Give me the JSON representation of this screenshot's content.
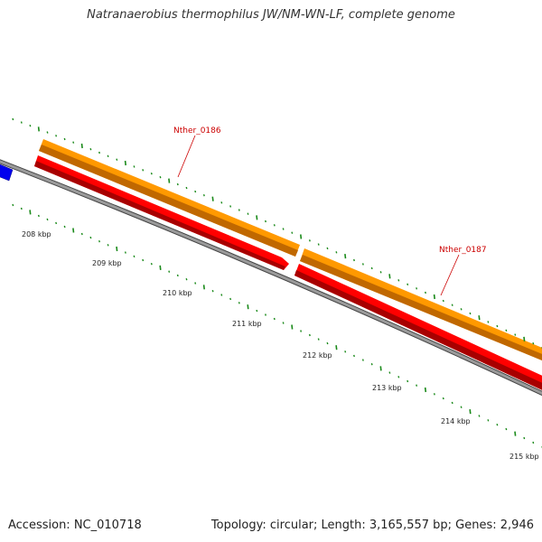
{
  "title": "Natranaerobius thermophilus JW/NM-WN-LF, complete genome",
  "accession": "Accession: NC_010718",
  "summary": "Topology: circular; Length: 3,165,557 bp; Genes: 2,946",
  "ruler": {
    "tick_labels": [
      "208 kbp",
      "209 kbp",
      "210 kbp",
      "211 kbp",
      "212 kbp",
      "213 kbp",
      "214 kbp",
      "215 kbp"
    ]
  },
  "genes": [
    {
      "label": "Nther_0186",
      "strand_color": "#ff9900",
      "cds_color": "#ff0000"
    },
    {
      "label": "Nther_0187",
      "strand_color": "#ff9900",
      "cds_color": "#ff0000"
    }
  ],
  "colors": {
    "backbone": "#888888",
    "forward_gene": "#ff9900",
    "cds": "#ff0000",
    "other_gene": "#0000ee",
    "ticks": "#1a8a1a",
    "gene_label": "#cc0000"
  }
}
